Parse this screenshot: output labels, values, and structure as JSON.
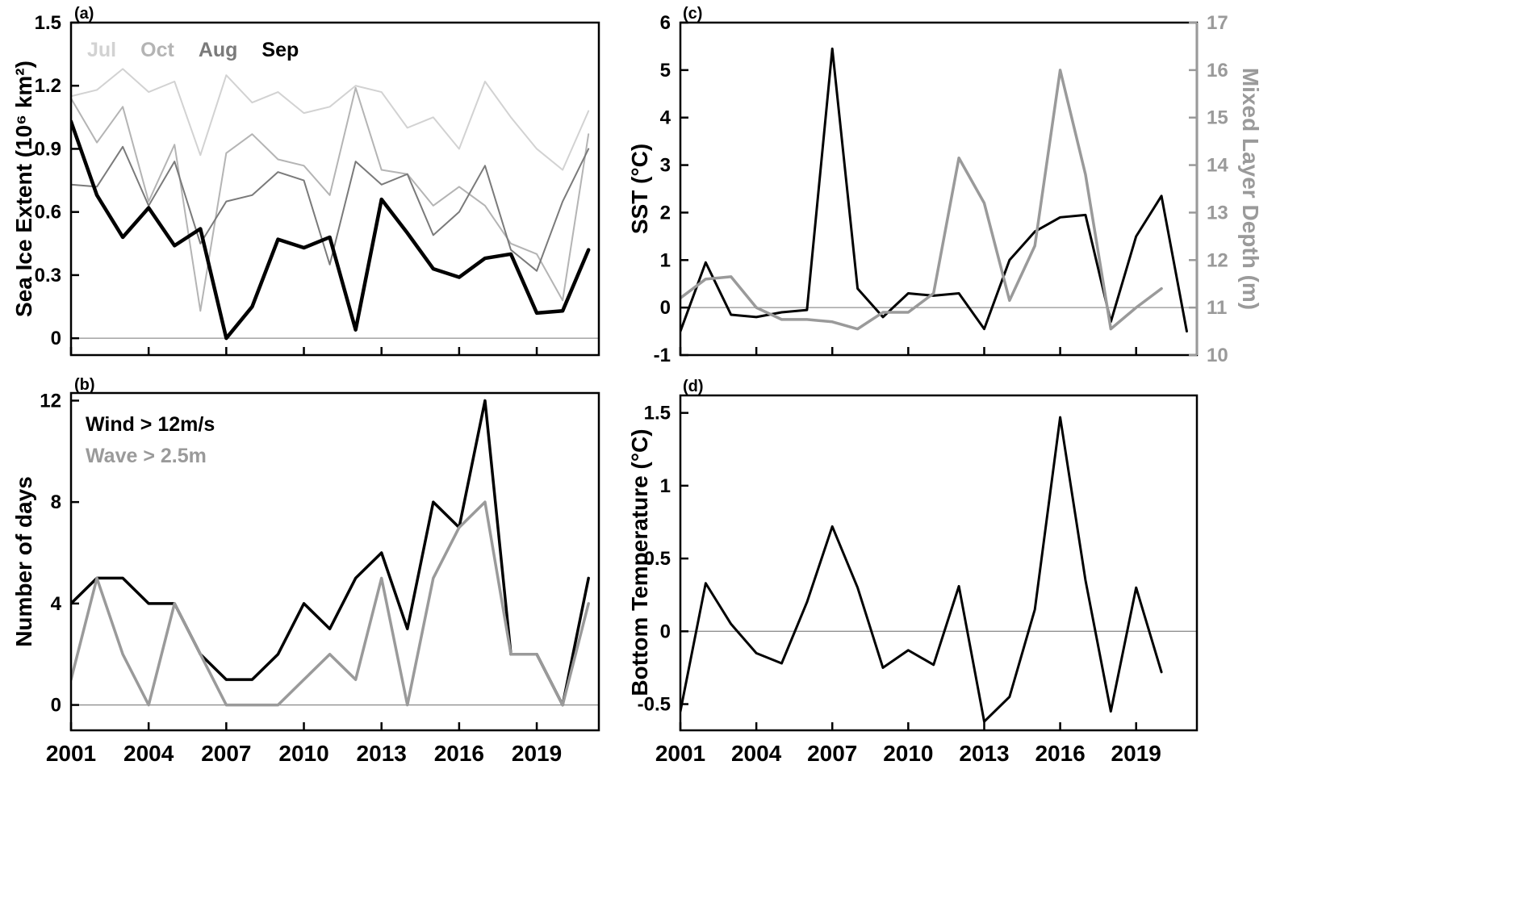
{
  "figure": {
    "background": "#ffffff"
  },
  "chart_data": [
    {
      "id": "a",
      "type": "line",
      "panel_label": "(a)",
      "title": "",
      "xlabel": "",
      "ylabel": "Sea Ice Extent (10⁶ km²)",
      "x": [
        2001,
        2002,
        2003,
        2004,
        2005,
        2006,
        2007,
        2008,
        2009,
        2010,
        2011,
        2012,
        2013,
        2014,
        2015,
        2016,
        2017,
        2018,
        2019,
        2020,
        2021
      ],
      "xlim": [
        2001,
        2021.4
      ],
      "xticks": [
        2001,
        2004,
        2007,
        2010,
        2013,
        2016,
        2019
      ],
      "show_xtick_labels": false,
      "ylim": [
        -0.08,
        1.5
      ],
      "yticks": [
        0,
        0.3,
        0.6,
        0.9,
        1.2,
        1.5
      ],
      "zero_line": 0,
      "grid": false,
      "legend_position": "top-left-horizontal",
      "series": [
        {
          "name": "Jul",
          "color": "#d2d2d2",
          "width": 2,
          "values": [
            1.15,
            1.18,
            1.28,
            1.17,
            1.22,
            0.87,
            1.25,
            1.12,
            1.17,
            1.07,
            1.1,
            1.2,
            1.17,
            1.0,
            1.05,
            0.9,
            1.22,
            1.05,
            0.9,
            0.8,
            1.08
          ]
        },
        {
          "name": "Oct",
          "color": "#b4b4b4",
          "width": 2,
          "values": [
            1.14,
            0.93,
            1.1,
            0.65,
            0.92,
            0.13,
            0.88,
            0.97,
            0.85,
            0.82,
            0.68,
            1.19,
            0.8,
            0.78,
            0.63,
            0.72,
            0.63,
            0.45,
            0.4,
            0.18,
            0.97
          ]
        },
        {
          "name": "Aug",
          "color": "#7a7a7a",
          "width": 2,
          "values": [
            0.73,
            0.72,
            0.91,
            0.63,
            0.84,
            0.45,
            0.65,
            0.68,
            0.79,
            0.75,
            0.35,
            0.84,
            0.73,
            0.78,
            0.49,
            0.6,
            0.82,
            0.42,
            0.32,
            0.65,
            0.9
          ]
        },
        {
          "name": "Sep",
          "color": "#000000",
          "width": 4.5,
          "values": [
            1.03,
            0.68,
            0.48,
            0.62,
            0.44,
            0.52,
            0.0,
            0.15,
            0.47,
            0.43,
            0.48,
            0.04,
            0.66,
            0.5,
            0.33,
            0.29,
            0.38,
            0.4,
            0.12,
            0.13,
            0.42
          ]
        }
      ]
    },
    {
      "id": "b",
      "type": "line",
      "panel_label": "(b)",
      "title": "",
      "xlabel": "",
      "ylabel": "Number of days",
      "x": [
        2001,
        2002,
        2003,
        2004,
        2005,
        2006,
        2007,
        2008,
        2009,
        2010,
        2011,
        2012,
        2013,
        2014,
        2015,
        2016,
        2017,
        2018,
        2019,
        2020,
        2021
      ],
      "xlim": [
        2001,
        2021.4
      ],
      "xticks": [
        2001,
        2004,
        2007,
        2010,
        2013,
        2016,
        2019
      ],
      "show_xtick_labels": true,
      "ylim": [
        -1.0,
        12.3
      ],
      "yticks": [
        0,
        4,
        8,
        12
      ],
      "zero_line": 0,
      "grid": false,
      "legend_position": "top-left-stacked",
      "series": [
        {
          "name": "Wind > 12m/s",
          "color": "#000000",
          "width": 3.5,
          "values": [
            4,
            5,
            5,
            4,
            4,
            2,
            1,
            1,
            2,
            4,
            3,
            5,
            6,
            3,
            8,
            7,
            12,
            2,
            2,
            0,
            5
          ]
        },
        {
          "name": "Wave > 2.5m",
          "color": "#9a9a9a",
          "width": 3.5,
          "values": [
            1,
            5,
            2,
            0,
            4,
            2,
            0,
            0,
            0,
            1,
            2,
            1,
            5,
            0,
            5,
            7,
            8,
            2,
            2,
            0,
            4
          ]
        }
      ]
    },
    {
      "id": "c",
      "type": "line",
      "panel_label": "(c)",
      "title": "",
      "xlabel": "",
      "ylabel": "SST (°C)",
      "ylabel_right": "Mixed Layer Depth (m)",
      "x": [
        2001,
        2002,
        2003,
        2004,
        2005,
        2006,
        2007,
        2008,
        2009,
        2010,
        2011,
        2012,
        2013,
        2014,
        2015,
        2016,
        2017,
        2018,
        2019,
        2020,
        2021
      ],
      "xlim": [
        2001,
        2021.4
      ],
      "xticks": [
        2001,
        2004,
        2007,
        2010,
        2013,
        2016,
        2019
      ],
      "show_xtick_labels": false,
      "ylim": [
        -1,
        6
      ],
      "yticks": [
        -1,
        0,
        1,
        2,
        3,
        4,
        5,
        6
      ],
      "ylim_right": [
        10,
        17
      ],
      "yticks_right": [
        10,
        11,
        12,
        13,
        14,
        15,
        16,
        17
      ],
      "right_axis_color": "#9a9a9a",
      "zero_line": 0,
      "grid": false,
      "series": [
        {
          "name": "SST",
          "axis": "left",
          "color": "#000000",
          "width": 3,
          "values": [
            -0.5,
            0.95,
            -0.15,
            -0.2,
            -0.1,
            -0.05,
            5.45,
            0.4,
            -0.2,
            0.3,
            0.25,
            0.3,
            -0.45,
            1.0,
            1.6,
            1.9,
            1.95,
            -0.3,
            1.5,
            2.35,
            -0.5
          ]
        },
        {
          "name": "Mixed Layer Depth",
          "axis": "right",
          "color": "#9a9a9a",
          "width": 3.5,
          "x": [
            2001,
            2002,
            2003,
            2004,
            2005,
            2006,
            2007,
            2008,
            2009,
            2010,
            2011,
            2012,
            2013,
            2014,
            2015,
            2016,
            2017,
            2018,
            2019,
            2020
          ],
          "values": [
            11.2,
            11.6,
            11.65,
            11.0,
            10.75,
            10.75,
            10.7,
            10.55,
            10.9,
            10.9,
            11.3,
            14.15,
            13.2,
            11.15,
            12.3,
            16.0,
            13.8,
            10.55,
            11.0,
            11.4
          ]
        }
      ]
    },
    {
      "id": "d",
      "type": "line",
      "panel_label": "(d)",
      "title": "",
      "xlabel": "",
      "ylabel": "Bottom Temperature (°C)",
      "x": [
        2001,
        2002,
        2003,
        2004,
        2005,
        2006,
        2007,
        2008,
        2009,
        2010,
        2011,
        2012,
        2013,
        2014,
        2015,
        2016,
        2017,
        2018,
        2019,
        2020
      ],
      "xlim": [
        2001,
        2021.4
      ],
      "xticks": [
        2001,
        2004,
        2007,
        2010,
        2013,
        2016,
        2019
      ],
      "show_xtick_labels": true,
      "ylim": [
        -0.68,
        1.62
      ],
      "yticks": [
        -0.5,
        0,
        0.5,
        1,
        1.5
      ],
      "zero_line": 0,
      "grid": false,
      "series": [
        {
          "name": "Bottom Temperature",
          "color": "#000000",
          "width": 3,
          "values": [
            -0.55,
            0.33,
            0.05,
            -0.15,
            -0.22,
            0.2,
            0.72,
            0.3,
            -0.25,
            -0.13,
            -0.23,
            0.31,
            -0.62,
            -0.45,
            0.15,
            1.47,
            0.35,
            -0.55,
            0.3,
            -0.28
          ]
        }
      ]
    }
  ]
}
